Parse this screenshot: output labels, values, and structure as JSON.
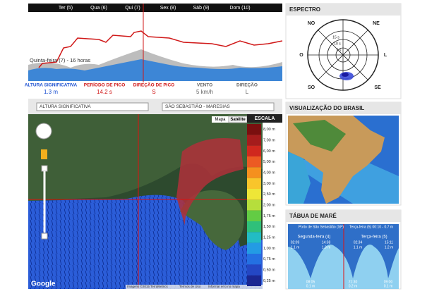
{
  "forecast": {
    "days": [
      "Ter (5)",
      "Qua (6)",
      "Qui (7)",
      "Sex (8)",
      "Sáb (9)",
      "Dom (10)"
    ],
    "cursor_label": "Quinta-feira (7) - 16 horas",
    "metrics": [
      {
        "label": "ALTURA SIGNIFICATIVA",
        "value": "1.3 m"
      },
      {
        "label": "PERÍODO DE PICO",
        "value": "14.2 s"
      },
      {
        "label": "DIREÇÃO DE PICO",
        "value": "S"
      },
      {
        "label": "VENTO",
        "value": "5 km/h"
      },
      {
        "label": "DIREÇÃO",
        "value": "L"
      }
    ]
  },
  "map": {
    "variable_select": "ALTURA SIGNIFICATIVA",
    "location_select": "SÃO SEBASTIÃO - MARESIAS",
    "map_button": "Mapa",
    "satellite_button": "Satélite",
    "scale_title": "ESCALA",
    "scale": [
      {
        "label": "8,00 m",
        "color": "#7a0f0f"
      },
      {
        "label": "7,00 m",
        "color": "#a51c1c"
      },
      {
        "label": "6,00 m",
        "color": "#d0281e"
      },
      {
        "label": "5,00 m",
        "color": "#ec5a23"
      },
      {
        "label": "4,00 m",
        "color": "#f5901e"
      },
      {
        "label": "3,00 m",
        "color": "#f9c52b"
      },
      {
        "label": "2,50 m",
        "color": "#eee637"
      },
      {
        "label": "2,00 m",
        "color": "#b6de3c"
      },
      {
        "label": "1,75 m",
        "color": "#63cc44"
      },
      {
        "label": "1,50 m",
        "color": "#2fc07a"
      },
      {
        "label": "1,25 m",
        "color": "#22bcc4"
      },
      {
        "label": "1,00 m",
        "color": "#239be4"
      },
      {
        "label": "0,75 m",
        "color": "#2470e2"
      },
      {
        "label": "0,50 m",
        "color": "#2447c4"
      },
      {
        "label": "0,25 m",
        "color": "#1b2792"
      }
    ],
    "google": "Google",
    "footer": [
      "Imagens ©2015 TerraMetrics",
      "Termos de Uso",
      "Informar erro no mapa"
    ]
  },
  "spectrum": {
    "title": "ESPECTRO",
    "directions": [
      "NO",
      "NE",
      "O",
      "L",
      "SO",
      "SE"
    ],
    "rings": [
      "15 s",
      "10 s",
      "5 s"
    ]
  },
  "brazil": {
    "title": "VISUALIZAÇÃO DO BRASIL"
  },
  "tide": {
    "title": "TÁBUA DE MARÉ",
    "port": "Porto de São Sebastião (SP)",
    "current": "Terça-feira (5) 00:10 - 0.7 m",
    "day1": "Segunda-feira (4)",
    "day2": "Terça-feira (5)",
    "highs": [
      {
        "time": "02:09",
        "height": "1.1 m"
      },
      {
        "time": "14:38",
        "height": "1.3 m"
      },
      {
        "time": "02:34",
        "height": "1.1 m"
      },
      {
        "time": "15:11",
        "height": "1.2 m"
      }
    ],
    "lows": [
      {
        "time": "08:05",
        "height": "0.1 m"
      },
      {
        "time": "21:30",
        "height": "0.2 m"
      },
      {
        "time": "09:00",
        "height": "0.1 m"
      }
    ]
  }
}
